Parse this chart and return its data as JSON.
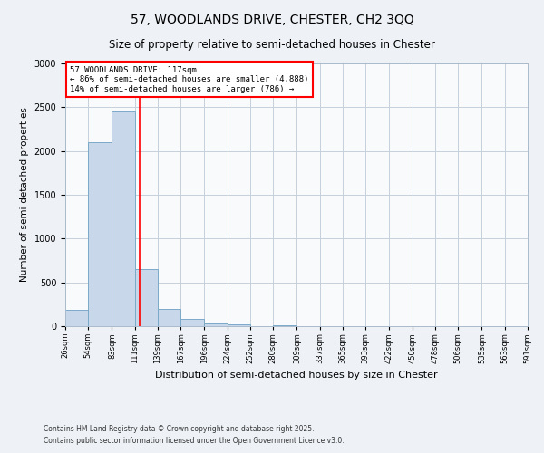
{
  "title": "57, WOODLANDS DRIVE, CHESTER, CH2 3QQ",
  "subtitle": "Size of property relative to semi-detached houses in Chester",
  "xlabel": "Distribution of semi-detached houses by size in Chester",
  "ylabel": "Number of semi-detached properties",
  "bar_color": "#c8d8ea",
  "bar_edge_color": "#7aaac8",
  "property_line_x": 117,
  "property_line_color": "red",
  "annotation_title": "57 WOODLANDS DRIVE: 117sqm",
  "annotation_line1": "← 86% of semi-detached houses are smaller (4,888)",
  "annotation_line2": "14% of semi-detached houses are larger (786) →",
  "annotation_box_color": "white",
  "annotation_box_edge": "red",
  "bin_edges": [
    26,
    54,
    83,
    111,
    139,
    167,
    196,
    224,
    252,
    280,
    309,
    337,
    365,
    393,
    422,
    450,
    478,
    506,
    535,
    563,
    591
  ],
  "bin_counts": [
    185,
    2100,
    2450,
    650,
    200,
    85,
    35,
    20,
    0,
    15,
    0,
    0,
    0,
    0,
    0,
    0,
    0,
    0,
    0,
    0
  ],
  "ylim": [
    0,
    3000
  ],
  "yticks": [
    0,
    500,
    1000,
    1500,
    2000,
    2500,
    3000
  ],
  "footer1": "Contains HM Land Registry data © Crown copyright and database right 2025.",
  "footer2": "Contains public sector information licensed under the Open Government Licence v3.0.",
  "background_color": "#eef2f7",
  "plot_bg_color": "#f8fafc",
  "grid_color": "#c5d0dc"
}
